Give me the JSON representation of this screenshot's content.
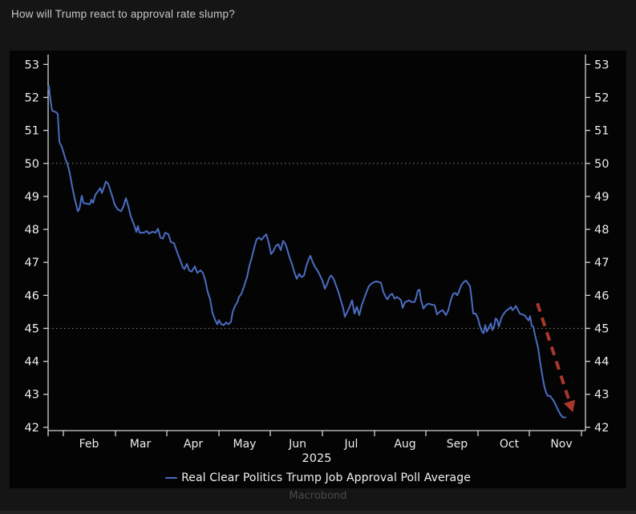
{
  "page": {
    "title": "How will Trump react to approval rate slump?",
    "watermark": "Macrobond"
  },
  "colors": {
    "page_bg": "#151515",
    "panel_bg": "#040404",
    "axis": "#d2d2d2",
    "tick_label": "#ececec",
    "gridline": "#9a9a9a",
    "line": "#4b6cc1",
    "arrow": "#a8382b",
    "legend_text": "#f2f2f2",
    "watermark_text": "#4a4a4a",
    "title_text": "#c8c8c8"
  },
  "chart_data": {
    "type": "line",
    "title": "",
    "x_axis": {
      "year_label": "2025",
      "time_domain": [
        "2025-01-21",
        "2025-12-01"
      ],
      "t_max": 670,
      "month_labels": [
        "Feb",
        "Mar",
        "Apr",
        "May",
        "Jun",
        "Jul",
        "Aug",
        "Sep",
        "Oct",
        "Nov"
      ],
      "month_label_t": [
        51,
        115,
        181,
        245,
        311,
        378,
        445,
        510,
        575,
        640
      ],
      "month_tick_t": [
        0,
        19,
        84,
        148,
        213,
        277,
        342,
        407,
        471,
        536,
        600,
        665
      ]
    },
    "y_axis": {
      "min": 42,
      "max": 53,
      "tick_step": 1,
      "domain": [
        41.9,
        53.3
      ],
      "dotted_gridlines": [
        50,
        45
      ],
      "sides": [
        "left",
        "right"
      ]
    },
    "legend_position": "bottom-center",
    "grid": "dotted reference lines at 50 and 45 only",
    "series": [
      {
        "name": "Real Clear Politics Trump Job Approval Poll Average",
        "color": "#4b6cc1",
        "points": [
          [
            0,
            52.25
          ],
          [
            1,
            52.35
          ],
          [
            3,
            51.9
          ],
          [
            5,
            51.6
          ],
          [
            10,
            51.55
          ],
          [
            12,
            51.5
          ],
          [
            14,
            50.65
          ],
          [
            17,
            50.5
          ],
          [
            19,
            50.35
          ],
          [
            22,
            50.1
          ],
          [
            24,
            50.0
          ],
          [
            27,
            49.7
          ],
          [
            30,
            49.3
          ],
          [
            33,
            48.95
          ],
          [
            37,
            48.55
          ],
          [
            39,
            48.62
          ],
          [
            42,
            49.02
          ],
          [
            44,
            48.8
          ],
          [
            48,
            48.78
          ],
          [
            52,
            48.76
          ],
          [
            54,
            48.9
          ],
          [
            56,
            48.8
          ],
          [
            59,
            49.05
          ],
          [
            62,
            49.15
          ],
          [
            65,
            49.25
          ],
          [
            67,
            49.1
          ],
          [
            70,
            49.3
          ],
          [
            72,
            49.45
          ],
          [
            75,
            49.38
          ],
          [
            78,
            49.15
          ],
          [
            80,
            49.0
          ],
          [
            83,
            48.75
          ],
          [
            87,
            48.6
          ],
          [
            91,
            48.55
          ],
          [
            94,
            48.7
          ],
          [
            97,
            48.95
          ],
          [
            100,
            48.7
          ],
          [
            103,
            48.4
          ],
          [
            107,
            48.15
          ],
          [
            110,
            47.92
          ],
          [
            112,
            48.1
          ],
          [
            114,
            47.9
          ],
          [
            119,
            47.9
          ],
          [
            123,
            47.95
          ],
          [
            126,
            47.87
          ],
          [
            130,
            47.93
          ],
          [
            134,
            47.9
          ],
          [
            137,
            48.02
          ],
          [
            140,
            47.75
          ],
          [
            143,
            47.72
          ],
          [
            146,
            47.9
          ],
          [
            150,
            47.85
          ],
          [
            153,
            47.62
          ],
          [
            157,
            47.58
          ],
          [
            161,
            47.3
          ],
          [
            165,
            47.05
          ],
          [
            168,
            46.85
          ],
          [
            170,
            46.8
          ],
          [
            173,
            46.95
          ],
          [
            176,
            46.75
          ],
          [
            179,
            46.72
          ],
          [
            183,
            46.88
          ],
          [
            186,
            46.68
          ],
          [
            190,
            46.76
          ],
          [
            193,
            46.68
          ],
          [
            196,
            46.45
          ],
          [
            199,
            46.1
          ],
          [
            202,
            45.88
          ],
          [
            205,
            45.46
          ],
          [
            208,
            45.27
          ],
          [
            211,
            45.12
          ],
          [
            213,
            45.25
          ],
          [
            216,
            45.12
          ],
          [
            219,
            45.1
          ],
          [
            222,
            45.18
          ],
          [
            225,
            45.12
          ],
          [
            228,
            45.2
          ],
          [
            230,
            45.49
          ],
          [
            233,
            45.68
          ],
          [
            236,
            45.8
          ],
          [
            238,
            45.95
          ],
          [
            241,
            46.05
          ],
          [
            244,
            46.25
          ],
          [
            248,
            46.55
          ],
          [
            251,
            46.9
          ],
          [
            254,
            47.15
          ],
          [
            257,
            47.45
          ],
          [
            260,
            47.7
          ],
          [
            263,
            47.75
          ],
          [
            266,
            47.68
          ],
          [
            269,
            47.78
          ],
          [
            272,
            47.85
          ],
          [
            275,
            47.6
          ],
          [
            278,
            47.25
          ],
          [
            281,
            47.35
          ],
          [
            284,
            47.5
          ],
          [
            287,
            47.55
          ],
          [
            290,
            47.37
          ],
          [
            293,
            47.65
          ],
          [
            296,
            47.55
          ],
          [
            298,
            47.4
          ],
          [
            301,
            47.15
          ],
          [
            304,
            46.95
          ],
          [
            307,
            46.7
          ],
          [
            310,
            46.5
          ],
          [
            313,
            46.65
          ],
          [
            316,
            46.55
          ],
          [
            319,
            46.6
          ],
          [
            322,
            46.9
          ],
          [
            325,
            47.1
          ],
          [
            327,
            47.2
          ],
          [
            330,
            47.0
          ],
          [
            333,
            46.85
          ],
          [
            336,
            46.75
          ],
          [
            339,
            46.6
          ],
          [
            342,
            46.45
          ],
          [
            345,
            46.2
          ],
          [
            348,
            46.35
          ],
          [
            351,
            46.55
          ],
          [
            353,
            46.6
          ],
          [
            356,
            46.5
          ],
          [
            359,
            46.3
          ],
          [
            362,
            46.1
          ],
          [
            365,
            45.85
          ],
          [
            368,
            45.6
          ],
          [
            370,
            45.35
          ],
          [
            373,
            45.5
          ],
          [
            376,
            45.65
          ],
          [
            379,
            45.85
          ],
          [
            382,
            45.45
          ],
          [
            385,
            45.65
          ],
          [
            388,
            45.4
          ],
          [
            391,
            45.7
          ],
          [
            394,
            45.9
          ],
          [
            397,
            46.1
          ],
          [
            400,
            46.28
          ],
          [
            403,
            46.35
          ],
          [
            406,
            46.4
          ],
          [
            410,
            46.42
          ],
          [
            413,
            46.4
          ],
          [
            415,
            46.38
          ],
          [
            418,
            46.1
          ],
          [
            421,
            45.95
          ],
          [
            423,
            45.88
          ],
          [
            426,
            46.0
          ],
          [
            429,
            46.05
          ],
          [
            432,
            45.9
          ],
          [
            435,
            45.95
          ],
          [
            438,
            45.9
          ],
          [
            440,
            45.85
          ],
          [
            442,
            45.62
          ],
          [
            445,
            45.8
          ],
          [
            448,
            45.82
          ],
          [
            450,
            45.85
          ],
          [
            453,
            45.8
          ],
          [
            457,
            45.8
          ],
          [
            459,
            45.95
          ],
          [
            461,
            46.15
          ],
          [
            463,
            46.17
          ],
          [
            465,
            45.85
          ],
          [
            468,
            45.6
          ],
          [
            471,
            45.7
          ],
          [
            474,
            45.75
          ],
          [
            478,
            45.72
          ],
          [
            482,
            45.7
          ],
          [
            485,
            45.42
          ],
          [
            488,
            45.5
          ],
          [
            492,
            45.55
          ],
          [
            496,
            45.4
          ],
          [
            499,
            45.55
          ],
          [
            502,
            45.85
          ],
          [
            505,
            46.05
          ],
          [
            508,
            46.07
          ],
          [
            510,
            46.0
          ],
          [
            512,
            46.1
          ],
          [
            515,
            46.3
          ],
          [
            518,
            46.4
          ],
          [
            521,
            46.45
          ],
          [
            524,
            46.35
          ],
          [
            526,
            46.28
          ],
          [
            528,
            45.9
          ],
          [
            530,
            45.45
          ],
          [
            533,
            45.45
          ],
          [
            536,
            45.3
          ],
          [
            538,
            45.1
          ],
          [
            541,
            44.9
          ],
          [
            543,
            44.85
          ],
          [
            545,
            45.1
          ],
          [
            547,
            44.9
          ],
          [
            549,
            45.0
          ],
          [
            552,
            45.15
          ],
          [
            554,
            44.95
          ],
          [
            556,
            45.05
          ],
          [
            558,
            45.3
          ],
          [
            560,
            45.25
          ],
          [
            562,
            45.05
          ],
          [
            565,
            45.3
          ],
          [
            567,
            45.4
          ],
          [
            570,
            45.5
          ],
          [
            572,
            45.55
          ],
          [
            575,
            45.6
          ],
          [
            577,
            45.65
          ],
          [
            579,
            45.55
          ],
          [
            581,
            45.6
          ],
          [
            583,
            45.68
          ],
          [
            585,
            45.6
          ],
          [
            588,
            45.45
          ],
          [
            591,
            45.42
          ],
          [
            594,
            45.4
          ],
          [
            597,
            45.3
          ],
          [
            599,
            45.24
          ],
          [
            601,
            45.37
          ],
          [
            603,
            45.07
          ],
          [
            605,
            45.05
          ],
          [
            607,
            44.8
          ],
          [
            609,
            44.6
          ],
          [
            611,
            44.4
          ],
          [
            613,
            44.05
          ],
          [
            615,
            43.75
          ],
          [
            617,
            43.45
          ],
          [
            619,
            43.2
          ],
          [
            621,
            43.05
          ],
          [
            623,
            42.95
          ],
          [
            626,
            42.95
          ],
          [
            628,
            42.88
          ],
          [
            630,
            42.82
          ],
          [
            632,
            42.72
          ],
          [
            634,
            42.62
          ],
          [
            636,
            42.52
          ],
          [
            638,
            42.42
          ],
          [
            640,
            42.35
          ],
          [
            642,
            42.3
          ],
          [
            645,
            42.3
          ]
        ]
      }
    ],
    "annotation_arrow": {
      "style": "dashed",
      "color": "#a8382b",
      "from_t": 610,
      "from_value": 45.76,
      "to_t": 650,
      "to_value": 42.78
    }
  }
}
